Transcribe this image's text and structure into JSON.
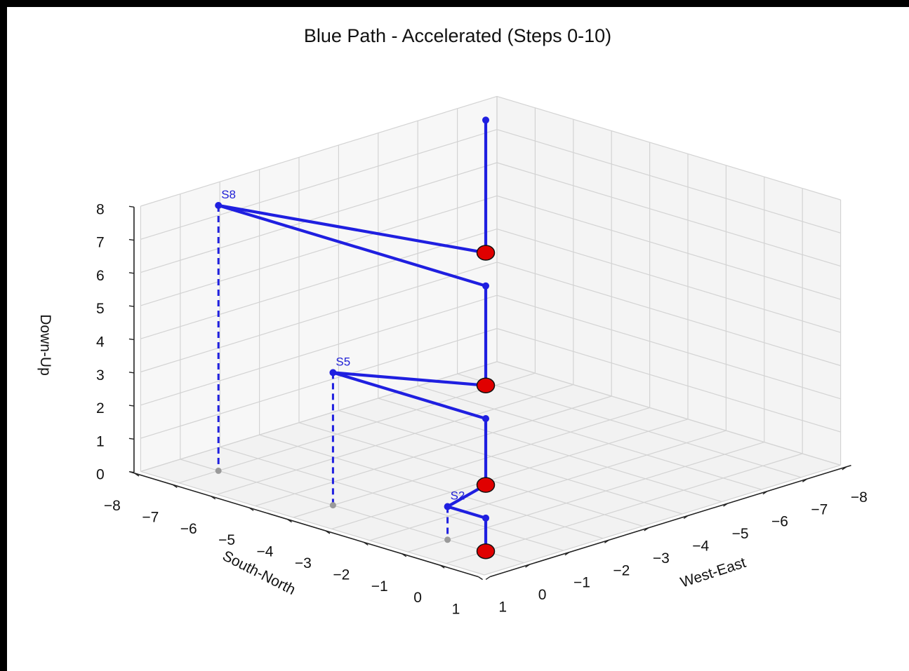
{
  "chart_data": {
    "type": "line3d",
    "title": "Blue Path - Accelerated (Steps 0-10)",
    "xlabel": "West-East",
    "ylabel": "South-North",
    "zlabel": "Down-Up",
    "xlim": [
      -8,
      1
    ],
    "ylim": [
      -8,
      1
    ],
    "zlim": [
      0,
      8
    ],
    "x_ticks": [
      "1",
      "0",
      "−1",
      "−2",
      "−3",
      "−4",
      "−5",
      "−6",
      "−7",
      "−8"
    ],
    "y_ticks": [
      "1",
      "0",
      "−1",
      "−2",
      "−3",
      "−4",
      "−5",
      "−6",
      "−7",
      "−8"
    ],
    "z_ticks": [
      "0",
      "1",
      "2",
      "3",
      "4",
      "5",
      "6",
      "7",
      "8"
    ],
    "grid": true,
    "colors": {
      "path": "#1f1fe0",
      "marker": "#e00000",
      "shadow": "#9a9a9a"
    },
    "points": [
      {
        "step": 0,
        "x": 0,
        "y": 0,
        "z": 0,
        "kind": "red"
      },
      {
        "step": 1,
        "x": 0,
        "y": 0,
        "z": 1,
        "kind": "dot"
      },
      {
        "step": 2,
        "x": 0,
        "y": -1,
        "z": 1,
        "kind": "dot",
        "label": "S2"
      },
      {
        "step": 3,
        "x": 0,
        "y": 0,
        "z": 2,
        "kind": "red"
      },
      {
        "step": 4,
        "x": 0,
        "y": 0,
        "z": 4,
        "kind": "dot"
      },
      {
        "step": 5,
        "x": 0,
        "y": -4,
        "z": 4,
        "kind": "dot",
        "label": "S5"
      },
      {
        "step": 6,
        "x": 0,
        "y": 0,
        "z": 5,
        "kind": "red"
      },
      {
        "step": 7,
        "x": 0,
        "y": 0,
        "z": 8,
        "kind": "dot"
      },
      {
        "step": 8,
        "x": 0,
        "y": -7,
        "z": 8,
        "kind": "dot",
        "label": "S8"
      },
      {
        "step": 9,
        "x": 0,
        "y": 0,
        "z": 9,
        "kind": "red"
      },
      {
        "step": 10,
        "x": 0,
        "y": 0,
        "z": 13,
        "kind": "dot"
      }
    ]
  }
}
